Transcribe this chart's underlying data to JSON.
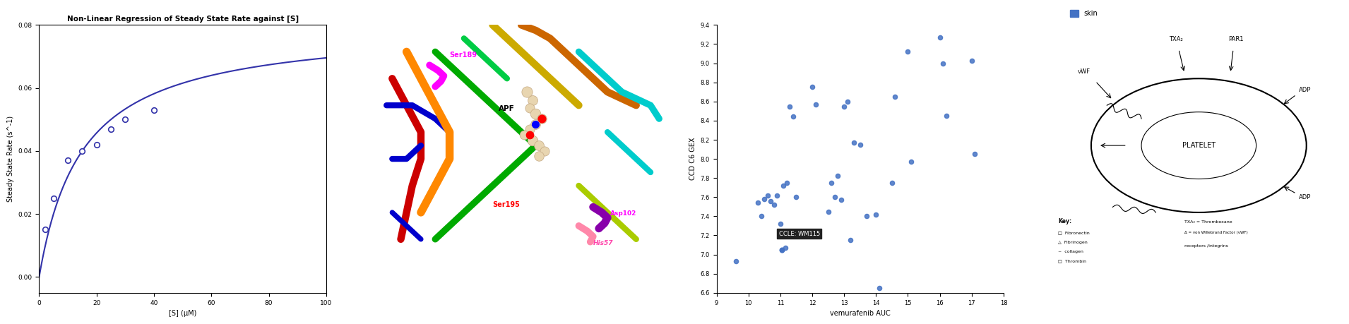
{
  "panel1": {
    "title": "Non-Linear Regression of Steady State Rate against [S]",
    "xlabel": "[S] (μM)",
    "ylabel": "Steady State Rate (s^-1)",
    "data_x": [
      2,
      5,
      10,
      15,
      20,
      25,
      30,
      40
    ],
    "data_y": [
      0.015,
      0.025,
      0.037,
      0.04,
      0.042,
      0.047,
      0.05,
      0.053
    ],
    "Vmax": 0.08,
    "Km": 15,
    "xlim": [
      0,
      100
    ],
    "ylim": [
      -0.005,
      0.08
    ],
    "yticks": [
      0.0,
      0.02,
      0.04,
      0.06,
      0.08
    ],
    "xticks": [
      0,
      20,
      40,
      60,
      80,
      100
    ],
    "curve_color": "#3333aa",
    "point_color": "white",
    "point_edge_color": "#3333aa"
  },
  "panel3": {
    "xlabel": "vemurafenib AUC",
    "ylabel": "CCD C6 GEX",
    "legend_label": "skin",
    "legend_color": "#4472c4",
    "xlim": [
      9,
      18
    ],
    "ylim": [
      6.6,
      9.4
    ],
    "xticks": [
      9,
      10,
      11,
      12,
      13,
      14,
      15,
      16,
      17,
      18
    ],
    "yticks": [
      6.6,
      6.8,
      7.0,
      7.2,
      7.4,
      7.6,
      7.8,
      8.0,
      8.2,
      8.4,
      8.6,
      8.8,
      9.0,
      9.2,
      9.4
    ],
    "dot_color": "#4472c4",
    "annotation_label": "CCLE: WM115",
    "annotation_bg": "#222222",
    "annotation_text_color": "white",
    "scatter_x": [
      9.6,
      10.3,
      10.4,
      10.5,
      10.6,
      10.7,
      10.8,
      10.9,
      11.0,
      11.1,
      11.2,
      11.3,
      11.4,
      11.5,
      11.05,
      11.15,
      12.0,
      12.1,
      12.5,
      12.6,
      12.7,
      12.8,
      12.9,
      13.0,
      13.1,
      13.2,
      13.3,
      13.5,
      13.7,
      14.0,
      14.1,
      14.5,
      14.6,
      15.0,
      15.1,
      16.0,
      16.1,
      16.2,
      17.0,
      17.1
    ],
    "scatter_y": [
      6.93,
      7.54,
      7.4,
      7.58,
      7.62,
      7.56,
      7.52,
      7.62,
      7.32,
      7.72,
      7.75,
      8.55,
      8.44,
      7.6,
      7.05,
      7.07,
      8.75,
      8.57,
      7.45,
      7.75,
      7.6,
      7.82,
      7.57,
      8.55,
      8.6,
      7.15,
      8.17,
      8.15,
      7.4,
      7.42,
      6.65,
      7.75,
      8.65,
      9.12,
      7.97,
      9.27,
      9.0,
      8.45,
      9.03,
      8.05
    ],
    "highlighted_x": 11.05,
    "highlighted_y": 7.05
  },
  "background_color": "#ffffff"
}
